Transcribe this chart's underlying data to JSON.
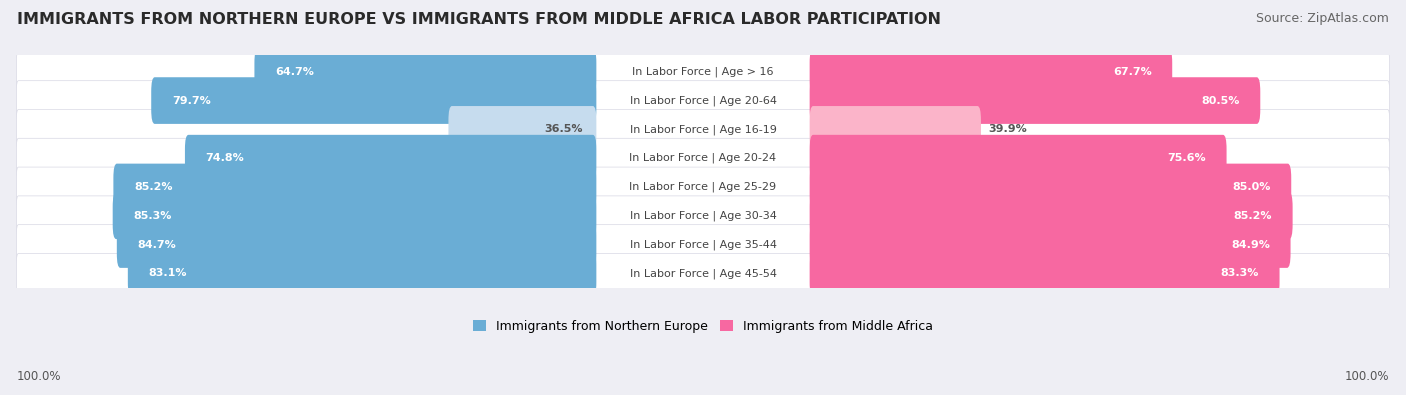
{
  "title": "IMMIGRANTS FROM NORTHERN EUROPE VS IMMIGRANTS FROM MIDDLE AFRICA LABOR PARTICIPATION",
  "source": "Source: ZipAtlas.com",
  "categories": [
    "In Labor Force | Age > 16",
    "In Labor Force | Age 20-64",
    "In Labor Force | Age 16-19",
    "In Labor Force | Age 20-24",
    "In Labor Force | Age 25-29",
    "In Labor Force | Age 30-34",
    "In Labor Force | Age 35-44",
    "In Labor Force | Age 45-54"
  ],
  "northern_europe": [
    64.7,
    79.7,
    36.5,
    74.8,
    85.2,
    85.3,
    84.7,
    83.1
  ],
  "middle_africa": [
    67.7,
    80.5,
    39.9,
    75.6,
    85.0,
    85.2,
    84.9,
    83.3
  ],
  "bar_color_north": "#6aadd5",
  "bar_color_africa": "#f768a1",
  "bar_color_north_light": "#c6dcee",
  "bar_color_africa_light": "#fbb4c9",
  "bg_color": "#eeeef4",
  "row_bg_color": "#f8f8fc",
  "row_bg_color_alt": "#ededf3",
  "title_fontsize": 11.5,
  "source_fontsize": 9,
  "label_fontsize": 8,
  "value_fontsize": 8,
  "legend_fontsize": 9,
  "footer_fontsize": 8.5,
  "max_value": 100.0,
  "center_label_color": "#444444",
  "value_text_color_white": "#ffffff",
  "value_text_color_dark": "#555555",
  "threshold_light": 50
}
